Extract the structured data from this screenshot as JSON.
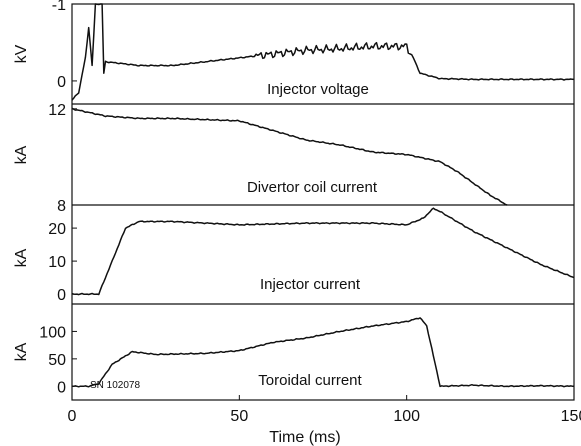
{
  "chart_data": {
    "type": "line",
    "xlabel": "Time (ms)",
    "xlim": [
      0,
      150
    ],
    "x_ticks": [
      "0",
      "50",
      "100",
      "150"
    ],
    "line_color": "#111111",
    "shot_label": "SN 102078",
    "panels": [
      {
        "name": "Injector voltage",
        "ylabel": "kV",
        "ylim": [
          0.3,
          -1.0
        ],
        "y_ticks": [
          "-1",
          "0"
        ],
        "y_tick_values": [
          -1,
          0
        ],
        "x": [
          0,
          2,
          4,
          5,
          6,
          7,
          8,
          9,
          9.5,
          10,
          20,
          30,
          40,
          50,
          60,
          70,
          80,
          90,
          100,
          102,
          104,
          110,
          120,
          130,
          140,
          150
        ],
        "y": [
          0.25,
          0.15,
          -0.3,
          -0.7,
          -0.2,
          -1.0,
          -1.0,
          -1.0,
          -0.1,
          -0.25,
          -0.2,
          -0.2,
          -0.25,
          -0.3,
          -0.35,
          -0.4,
          -0.42,
          -0.45,
          -0.45,
          -0.3,
          -0.1,
          -0.03,
          -0.02,
          -0.02,
          -0.02,
          -0.02
        ],
        "noise_from": 55,
        "noise_to": 101
      },
      {
        "name": "Divertor coil current",
        "ylabel": "kA",
        "ylim": [
          8,
          12.2
        ],
        "y_ticks": [
          "12",
          "8"
        ],
        "y_tick_values": [
          12,
          8
        ],
        "x": [
          0,
          10,
          20,
          30,
          40,
          50,
          60,
          70,
          80,
          90,
          100,
          110,
          115,
          120,
          125,
          130
        ],
        "y": [
          12.0,
          11.7,
          11.6,
          11.6,
          11.55,
          11.5,
          11.1,
          10.7,
          10.5,
          10.2,
          10.1,
          9.8,
          9.4,
          8.9,
          8.4,
          8.0
        ]
      },
      {
        "name": "Injector current",
        "ylabel": "kA",
        "ylim": [
          -3,
          27
        ],
        "y_ticks": [
          "20",
          "10",
          "0"
        ],
        "y_tick_values": [
          20,
          10,
          0
        ],
        "x": [
          0,
          8,
          12,
          16,
          20,
          30,
          50,
          70,
          90,
          100,
          105,
          108,
          110,
          115,
          120,
          130,
          140,
          150
        ],
        "y": [
          0,
          0,
          10,
          20,
          22,
          22,
          21,
          21.5,
          21.5,
          21,
          23,
          26,
          25,
          22,
          19,
          14,
          9,
          5
        ]
      },
      {
        "name": "Toroidal current",
        "ylabel": "kA",
        "ylim": [
          -25,
          150
        ],
        "y_ticks": [
          "100",
          "50",
          "0"
        ],
        "y_tick_values": [
          100,
          50,
          0
        ],
        "x": [
          0,
          5,
          8,
          12,
          18,
          25,
          40,
          50,
          60,
          70,
          80,
          90,
          100,
          104,
          106,
          108,
          110,
          120,
          130,
          140,
          150
        ],
        "y": [
          0,
          0,
          5,
          40,
          63,
          58,
          60,
          65,
          80,
          88,
          100,
          110,
          118,
          125,
          110,
          55,
          0,
          2,
          0,
          1,
          0
        ]
      }
    ]
  }
}
